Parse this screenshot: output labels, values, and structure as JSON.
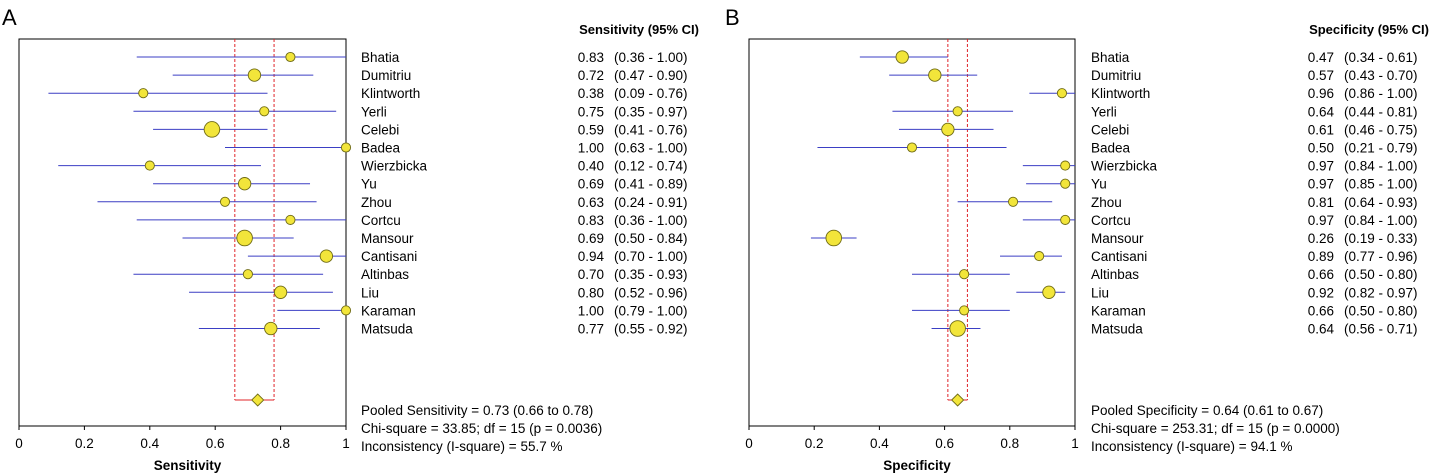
{
  "chart_data": [
    {
      "type": "forest",
      "panel_label": "A",
      "column_header": "Sensitivity (95% CI)",
      "xlabel": "Sensitivity",
      "xlim": [
        0,
        1
      ],
      "ticks": [
        "0",
        "0.2",
        "0.4",
        "0.6",
        "0.8",
        "1"
      ],
      "pooled": {
        "value": 0.73,
        "low": 0.66,
        "high": 0.78
      },
      "studies": [
        {
          "name": "Bhatia",
          "value": 0.83,
          "low": 0.36,
          "high": 1.0,
          "est": "0.83",
          "ci": "(0.36 - 1.00)",
          "size": 1
        },
        {
          "name": "Dumitriu",
          "value": 0.72,
          "low": 0.47,
          "high": 0.9,
          "est": "0.72",
          "ci": "(0.47 - 0.90)",
          "size": 2
        },
        {
          "name": "Klintworth",
          "value": 0.38,
          "low": 0.09,
          "high": 0.76,
          "est": "0.38",
          "ci": "(0.09 - 0.76)",
          "size": 1
        },
        {
          "name": "Yerli",
          "value": 0.75,
          "low": 0.35,
          "high": 0.97,
          "est": "0.75",
          "ci": "(0.35 - 0.97)",
          "size": 1
        },
        {
          "name": "Celebi",
          "value": 0.59,
          "low": 0.41,
          "high": 0.76,
          "est": "0.59",
          "ci": "(0.41 - 0.76)",
          "size": 3
        },
        {
          "name": "Badea",
          "value": 1.0,
          "low": 0.63,
          "high": 1.0,
          "est": "1.00",
          "ci": "(0.63 - 1.00)",
          "size": 1
        },
        {
          "name": "Wierzbicka",
          "value": 0.4,
          "low": 0.12,
          "high": 0.74,
          "est": "0.40",
          "ci": "(0.12 - 0.74)",
          "size": 1
        },
        {
          "name": "Yu",
          "value": 0.69,
          "low": 0.41,
          "high": 0.89,
          "est": "0.69",
          "ci": "(0.41 - 0.89)",
          "size": 2
        },
        {
          "name": "Zhou",
          "value": 0.63,
          "low": 0.24,
          "high": 0.91,
          "est": "0.63",
          "ci": "(0.24 - 0.91)",
          "size": 1
        },
        {
          "name": "Cortcu",
          "value": 0.83,
          "low": 0.36,
          "high": 1.0,
          "est": "0.83",
          "ci": "(0.36 - 1.00)",
          "size": 1
        },
        {
          "name": "Mansour",
          "value": 0.69,
          "low": 0.5,
          "high": 0.84,
          "est": "0.69",
          "ci": "(0.50 - 0.84)",
          "size": 3
        },
        {
          "name": "Cantisani",
          "value": 0.94,
          "low": 0.7,
          "high": 1.0,
          "est": "0.94",
          "ci": "(0.70 - 1.00)",
          "size": 2
        },
        {
          "name": "Altinbas",
          "value": 0.7,
          "low": 0.35,
          "high": 0.93,
          "est": "0.70",
          "ci": "(0.35 - 0.93)",
          "size": 1
        },
        {
          "name": "Liu",
          "value": 0.8,
          "low": 0.52,
          "high": 0.96,
          "est": "0.80",
          "ci": "(0.52 - 0.96)",
          "size": 2
        },
        {
          "name": "Karaman",
          "value": 1.0,
          "low": 0.79,
          "high": 1.0,
          "est": "1.00",
          "ci": "(0.79 - 1.00)",
          "size": 1
        },
        {
          "name": "Matsuda",
          "value": 0.77,
          "low": 0.55,
          "high": 0.92,
          "est": "0.77",
          "ci": "(0.55 - 0.92)",
          "size": 2
        }
      ],
      "summary_lines": [
        "Pooled Sensitivity = 0.73 (0.66 to 0.78)",
        "Chi-square = 33.85; df =  15 (p = 0.0036)",
        "Inconsistency (I-square) = 55.7 %"
      ]
    },
    {
      "type": "forest",
      "panel_label": "B",
      "column_header": "Specificity (95% CI)",
      "xlabel": "Specificity",
      "xlim": [
        0,
        1
      ],
      "ticks": [
        "0",
        "0.2",
        "0.4",
        "0.6",
        "0.8",
        "1"
      ],
      "pooled": {
        "value": 0.64,
        "low": 0.61,
        "high": 0.67
      },
      "studies": [
        {
          "name": "Bhatia",
          "value": 0.47,
          "low": 0.34,
          "high": 0.61,
          "est": "0.47",
          "ci": "(0.34 - 0.61)",
          "size": 2
        },
        {
          "name": "Dumitriu",
          "value": 0.57,
          "low": 0.43,
          "high": 0.7,
          "est": "0.57",
          "ci": "(0.43 - 0.70)",
          "size": 2
        },
        {
          "name": "Klintworth",
          "value": 0.96,
          "low": 0.86,
          "high": 1.0,
          "est": "0.96",
          "ci": "(0.86 - 1.00)",
          "size": 1
        },
        {
          "name": "Yerli",
          "value": 0.64,
          "low": 0.44,
          "high": 0.81,
          "est": "0.64",
          "ci": "(0.44 - 0.81)",
          "size": 1
        },
        {
          "name": "Celebi",
          "value": 0.61,
          "low": 0.46,
          "high": 0.75,
          "est": "0.61",
          "ci": "(0.46 - 0.75)",
          "size": 2
        },
        {
          "name": "Badea",
          "value": 0.5,
          "low": 0.21,
          "high": 0.79,
          "est": "0.50",
          "ci": "(0.21 - 0.79)",
          "size": 1
        },
        {
          "name": "Wierzbicka",
          "value": 0.97,
          "low": 0.84,
          "high": 1.0,
          "est": "0.97",
          "ci": "(0.84 - 1.00)",
          "size": 1
        },
        {
          "name": "Yu",
          "value": 0.97,
          "low": 0.85,
          "high": 1.0,
          "est": "0.97",
          "ci": "(0.85 - 1.00)",
          "size": 1
        },
        {
          "name": "Zhou",
          "value": 0.81,
          "low": 0.64,
          "high": 0.93,
          "est": "0.81",
          "ci": "(0.64 - 0.93)",
          "size": 1
        },
        {
          "name": "Cortcu",
          "value": 0.97,
          "low": 0.84,
          "high": 1.0,
          "est": "0.97",
          "ci": "(0.84 - 1.00)",
          "size": 1
        },
        {
          "name": "Mansour",
          "value": 0.26,
          "low": 0.19,
          "high": 0.33,
          "est": "0.26",
          "ci": "(0.19 - 0.33)",
          "size": 3
        },
        {
          "name": "Cantisani",
          "value": 0.89,
          "low": 0.77,
          "high": 0.96,
          "est": "0.89",
          "ci": "(0.77 - 0.96)",
          "size": 1
        },
        {
          "name": "Altinbas",
          "value": 0.66,
          "low": 0.5,
          "high": 0.8,
          "est": "0.66",
          "ci": "(0.50 - 0.80)",
          "size": 1
        },
        {
          "name": "Liu",
          "value": 0.92,
          "low": 0.82,
          "high": 0.97,
          "est": "0.92",
          "ci": "(0.82 - 0.97)",
          "size": 2
        },
        {
          "name": "Karaman",
          "value": 0.66,
          "low": 0.5,
          "high": 0.8,
          "est": "0.66",
          "ci": "(0.50 - 0.80)",
          "size": 1
        },
        {
          "name": "Matsuda",
          "value": 0.64,
          "low": 0.56,
          "high": 0.71,
          "est": "0.64",
          "ci": "(0.56 - 0.71)",
          "size": 3
        }
      ],
      "summary_lines": [
        "Pooled Specificity = 0.64 (0.61 to 0.67)",
        "Chi-square = 253.31; df =  15 (p = 0.0000)",
        "Inconsistency (I-square) = 94.1 %"
      ]
    }
  ],
  "colors": {
    "marker_fill": "#f2e53a",
    "marker_stroke": "#6e6a14",
    "ci_line": "#3b3fc4",
    "pooled_lines": "#e0242a",
    "frame": "#000000"
  }
}
